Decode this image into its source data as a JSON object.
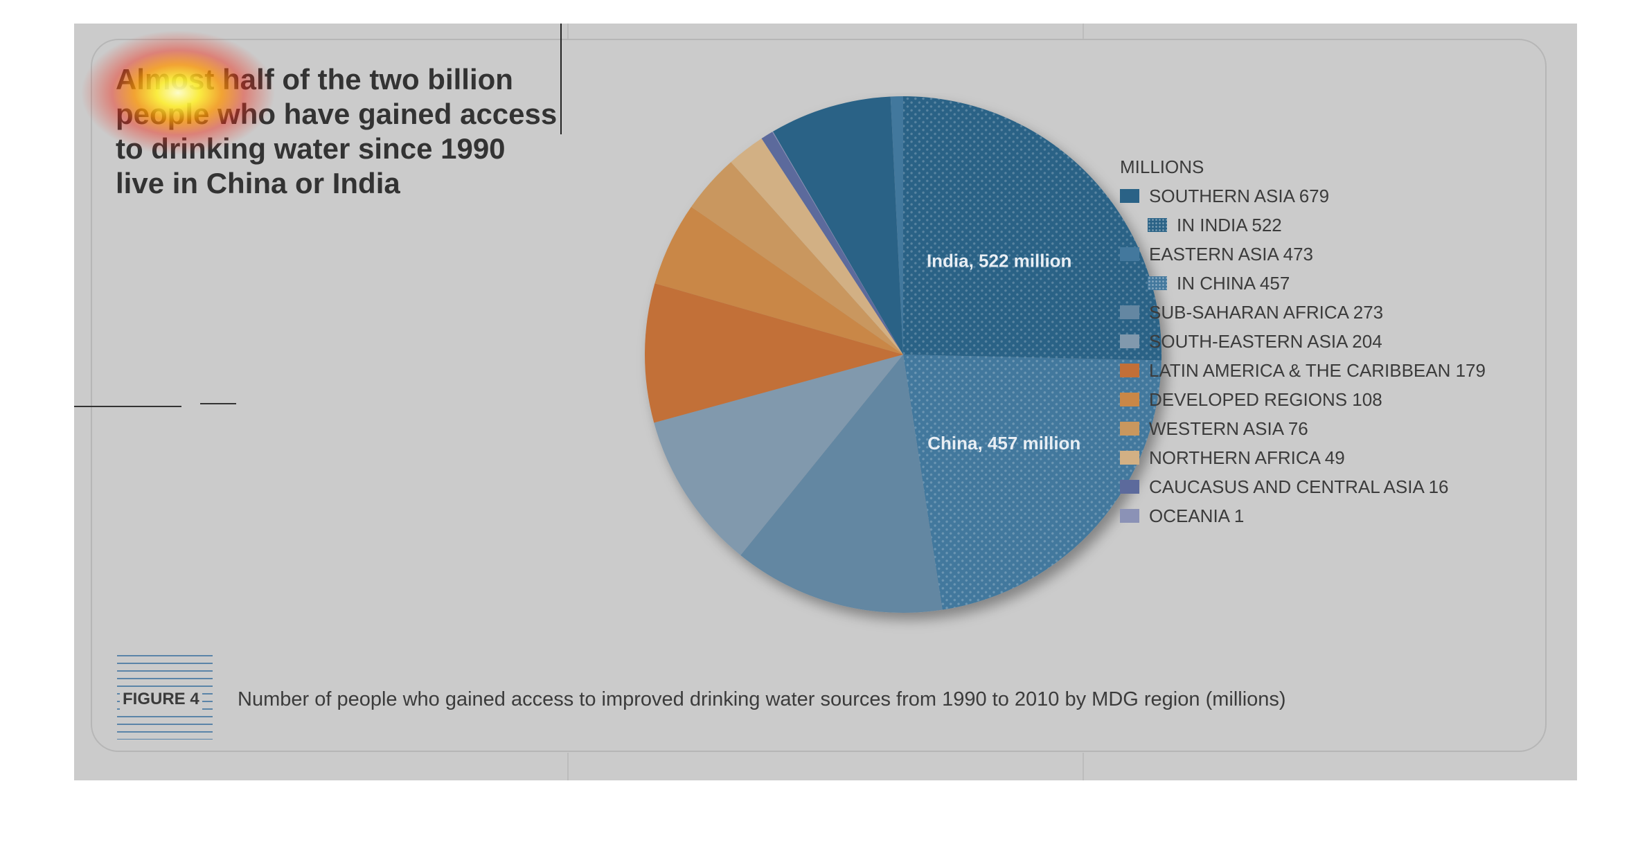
{
  "headline": {
    "lines": [
      "Almost half of the two billion",
      "people who have gained access",
      "to drinking water since 1990",
      "live in China or India"
    ]
  },
  "figure": {
    "label": "FIGURE 4",
    "caption": "Number of people who gained access to improved drinking water sources from 1990 to 2010 by MDG region (millions)"
  },
  "chart_data": {
    "type": "pie",
    "title": "Number of people who gained access to improved drinking water sources from 1990 to 2010 by MDG region (millions)",
    "legend_title": "MILLIONS",
    "legend_position": "right",
    "legend": [
      {
        "label": "SOUTHERN ASIA 679",
        "color": "#2a6286",
        "sub": false
      },
      {
        "label": "IN INDIA 522",
        "color": "#2a6286",
        "sub": true,
        "pattern": "dots"
      },
      {
        "label": "EASTERN ASIA 473",
        "color": "#43789d",
        "sub": false
      },
      {
        "label": "IN CHINA 457",
        "color": "#43789d",
        "sub": true,
        "pattern": "dots"
      },
      {
        "label": "SUB-SAHARAN AFRICA 273",
        "color": "#6487a2",
        "sub": false
      },
      {
        "label": "SOUTH-EASTERN ASIA 204",
        "color": "#8199ad",
        "sub": false
      },
      {
        "label": "LATIN AMERICA & THE CARIBBEAN 179",
        "color": "#c26f38",
        "sub": false
      },
      {
        "label": "DEVELOPED REGIONS 108",
        "color": "#c98747",
        "sub": false
      },
      {
        "label": "WESTERN ASIA 76",
        "color": "#c9975e",
        "sub": false
      },
      {
        "label": "NORTHERN AFRICA 49",
        "color": "#d2b084",
        "sub": false
      },
      {
        "label": "CAUCASUS AND CENTRAL ASIA 16",
        "color": "#5c6a9c",
        "sub": false
      },
      {
        "label": "OCEANIA 1",
        "color": "#8b92b6",
        "sub": false
      }
    ],
    "slices": [
      {
        "name": "India",
        "value": 522,
        "color": "#2a6286",
        "pattern": "dots",
        "label": "India, 522 million"
      },
      {
        "name": "China",
        "value": 457,
        "color": "#43789d",
        "pattern": "dots",
        "label": "China, 457 million"
      },
      {
        "name": "Sub-Saharan Africa",
        "value": 273,
        "color": "#6487a2"
      },
      {
        "name": "South-Eastern Asia",
        "value": 204,
        "color": "#8199ad"
      },
      {
        "name": "Latin America & the Caribbean",
        "value": 179,
        "color": "#c26f38"
      },
      {
        "name": "Developed regions",
        "value": 108,
        "color": "#c98747"
      },
      {
        "name": "Western Asia",
        "value": 76,
        "color": "#c9975e"
      },
      {
        "name": "Northern Africa",
        "value": 49,
        "color": "#d2b084"
      },
      {
        "name": "Caucasus and Central Asia",
        "value": 16,
        "color": "#5c6a9c"
      },
      {
        "name": "Oceania",
        "value": 1,
        "color": "#8b92b6"
      },
      {
        "name": "Southern Asia (excluding India)",
        "value": 157,
        "color": "#2a6286"
      },
      {
        "name": "Eastern Asia (excluding China)",
        "value": 16,
        "color": "#43789d"
      }
    ]
  }
}
